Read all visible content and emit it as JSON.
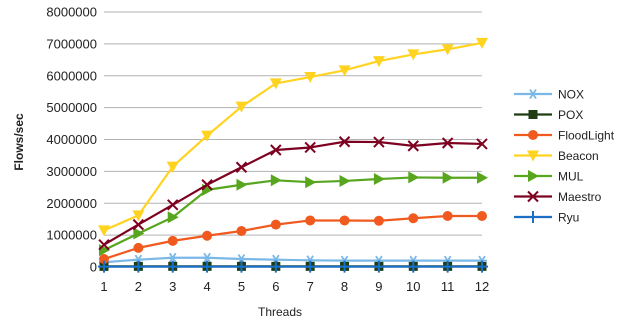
{
  "chart_data": {
    "type": "line",
    "title": "",
    "xlabel": "Threads",
    "ylabel": "Flows/sec",
    "x": [
      1,
      2,
      3,
      4,
      5,
      6,
      7,
      8,
      9,
      10,
      11,
      12
    ],
    "ylim": [
      0,
      8000000
    ],
    "yticks": [
      0,
      1000000,
      2000000,
      3000000,
      4000000,
      5000000,
      6000000,
      7000000,
      8000000
    ],
    "grid": "horizontal",
    "legend_position": "right",
    "series": [
      {
        "name": "NOX",
        "color": "#7ab8e8",
        "marker": "asterisk",
        "values": [
          150000,
          230000,
          290000,
          290000,
          250000,
          230000,
          210000,
          200000,
          200000,
          200000,
          200000,
          200000
        ]
      },
      {
        "name": "POX",
        "color": "#1f3d12",
        "marker": "square",
        "values": [
          20000,
          20000,
          20000,
          20000,
          20000,
          20000,
          20000,
          20000,
          20000,
          20000,
          20000,
          20000
        ]
      },
      {
        "name": "FloodLight",
        "color": "#f05a1e",
        "marker": "circle",
        "values": [
          250000,
          600000,
          820000,
          980000,
          1130000,
          1330000,
          1460000,
          1460000,
          1450000,
          1530000,
          1600000,
          1600000
        ]
      },
      {
        "name": "Beacon",
        "color": "#ffd320",
        "marker": "triangle-down",
        "values": [
          1150000,
          1620000,
          3150000,
          4120000,
          5030000,
          5760000,
          5960000,
          6170000,
          6460000,
          6670000,
          6830000,
          7030000
        ]
      },
      {
        "name": "MUL",
        "color": "#58a61e",
        "marker": "triangle-right",
        "values": [
          530000,
          1050000,
          1560000,
          2420000,
          2580000,
          2720000,
          2660000,
          2700000,
          2760000,
          2810000,
          2800000,
          2800000
        ]
      },
      {
        "name": "Maestro",
        "color": "#7e0021",
        "marker": "x",
        "values": [
          700000,
          1330000,
          1950000,
          2580000,
          3130000,
          3670000,
          3750000,
          3930000,
          3920000,
          3800000,
          3890000,
          3860000
        ]
      },
      {
        "name": "Ryu",
        "color": "#1a6ec4",
        "marker": "plus",
        "values": [
          10000,
          10000,
          10000,
          10000,
          10000,
          10000,
          10000,
          10000,
          10000,
          10000,
          10000,
          10000
        ]
      }
    ]
  }
}
